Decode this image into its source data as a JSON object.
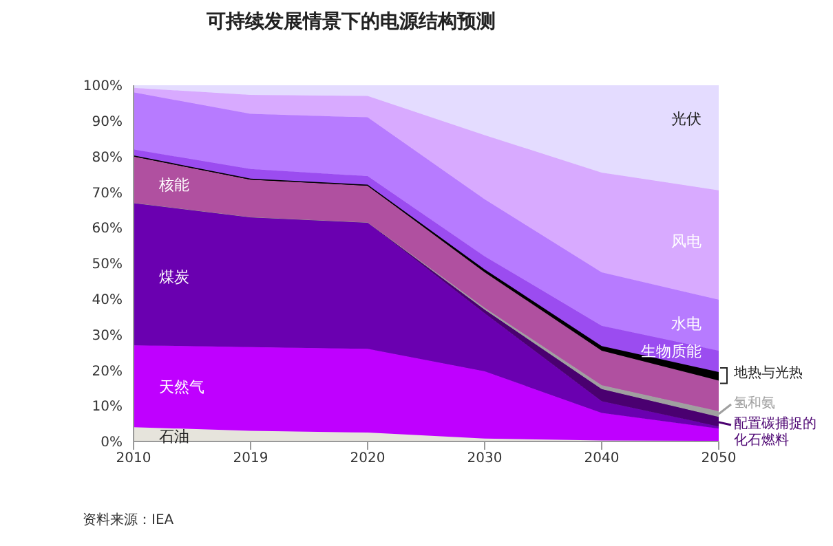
{
  "chart_data": {
    "type": "area",
    "stacked": true,
    "title": "可持续发展情景下的电源结构预测",
    "categories": [
      "2010",
      "2019",
      "2020",
      "2030",
      "2040",
      "2050"
    ],
    "ylim": [
      0,
      100
    ],
    "yticks": [
      {
        "value": 0,
        "label": "0%"
      },
      {
        "value": 10,
        "label": "10%"
      },
      {
        "value": 20,
        "label": "20%"
      },
      {
        "value": 30,
        "label": "30%"
      },
      {
        "value": 40,
        "label": "40%"
      },
      {
        "value": 50,
        "label": "50%"
      },
      {
        "value": 60,
        "label": "60%"
      },
      {
        "value": 70,
        "label": "70%"
      },
      {
        "value": 80,
        "label": "80%"
      },
      {
        "value": 90,
        "label": "90%"
      },
      {
        "value": 100,
        "label": "100%"
      }
    ],
    "grid": false,
    "series": [
      {
        "name": "石油",
        "color": "#e6e4dc",
        "values": [
          4,
          3,
          2.5,
          0.8,
          0.3,
          0.2
        ]
      },
      {
        "name": "天然气",
        "color": "#bf00ff",
        "values": [
          23,
          23.5,
          23.5,
          18.9,
          7.7,
          3.4
        ]
      },
      {
        "name": "煤炭",
        "color": "#6a00b0",
        "values": [
          40,
          36.5,
          35.5,
          16.3,
          3.3,
          0.6
        ]
      },
      {
        "name": "配置碳捕捉的化石燃料",
        "color": "#4a0070",
        "values": [
          0,
          0,
          0,
          1,
          3.4,
          2.7
        ]
      },
      {
        "name": "氢和氨",
        "color": "#a0a0a0",
        "values": [
          0,
          0,
          0,
          0.5,
          1.1,
          1.6
        ]
      },
      {
        "name": "核能",
        "color": "#b050a0",
        "values": [
          13,
          10.5,
          10.3,
          10,
          9.7,
          8.6
        ]
      },
      {
        "name": "地热与光热",
        "color": "#000000",
        "values": [
          0.3,
          0.3,
          0.3,
          0.8,
          1.3,
          2.4
        ]
      },
      {
        "name": "生物质能",
        "color": "#9b4cf0",
        "values": [
          1.7,
          2.7,
          2.4,
          3.7,
          5.7,
          6
        ]
      },
      {
        "name": "水电",
        "color": "#b77bff",
        "values": [
          16,
          15.5,
          16.5,
          16,
          15,
          14.3
        ]
      },
      {
        "name": "风电",
        "color": "#d8aaff",
        "values": [
          1.3,
          5.3,
          6,
          18,
          28,
          30.7
        ]
      },
      {
        "name": "光伏",
        "color": "#e4dcff",
        "values": [
          0.7,
          2.7,
          3,
          14,
          24.5,
          29.5
        ]
      }
    ],
    "annotations": [
      "资料来源：IEA"
    ]
  }
}
